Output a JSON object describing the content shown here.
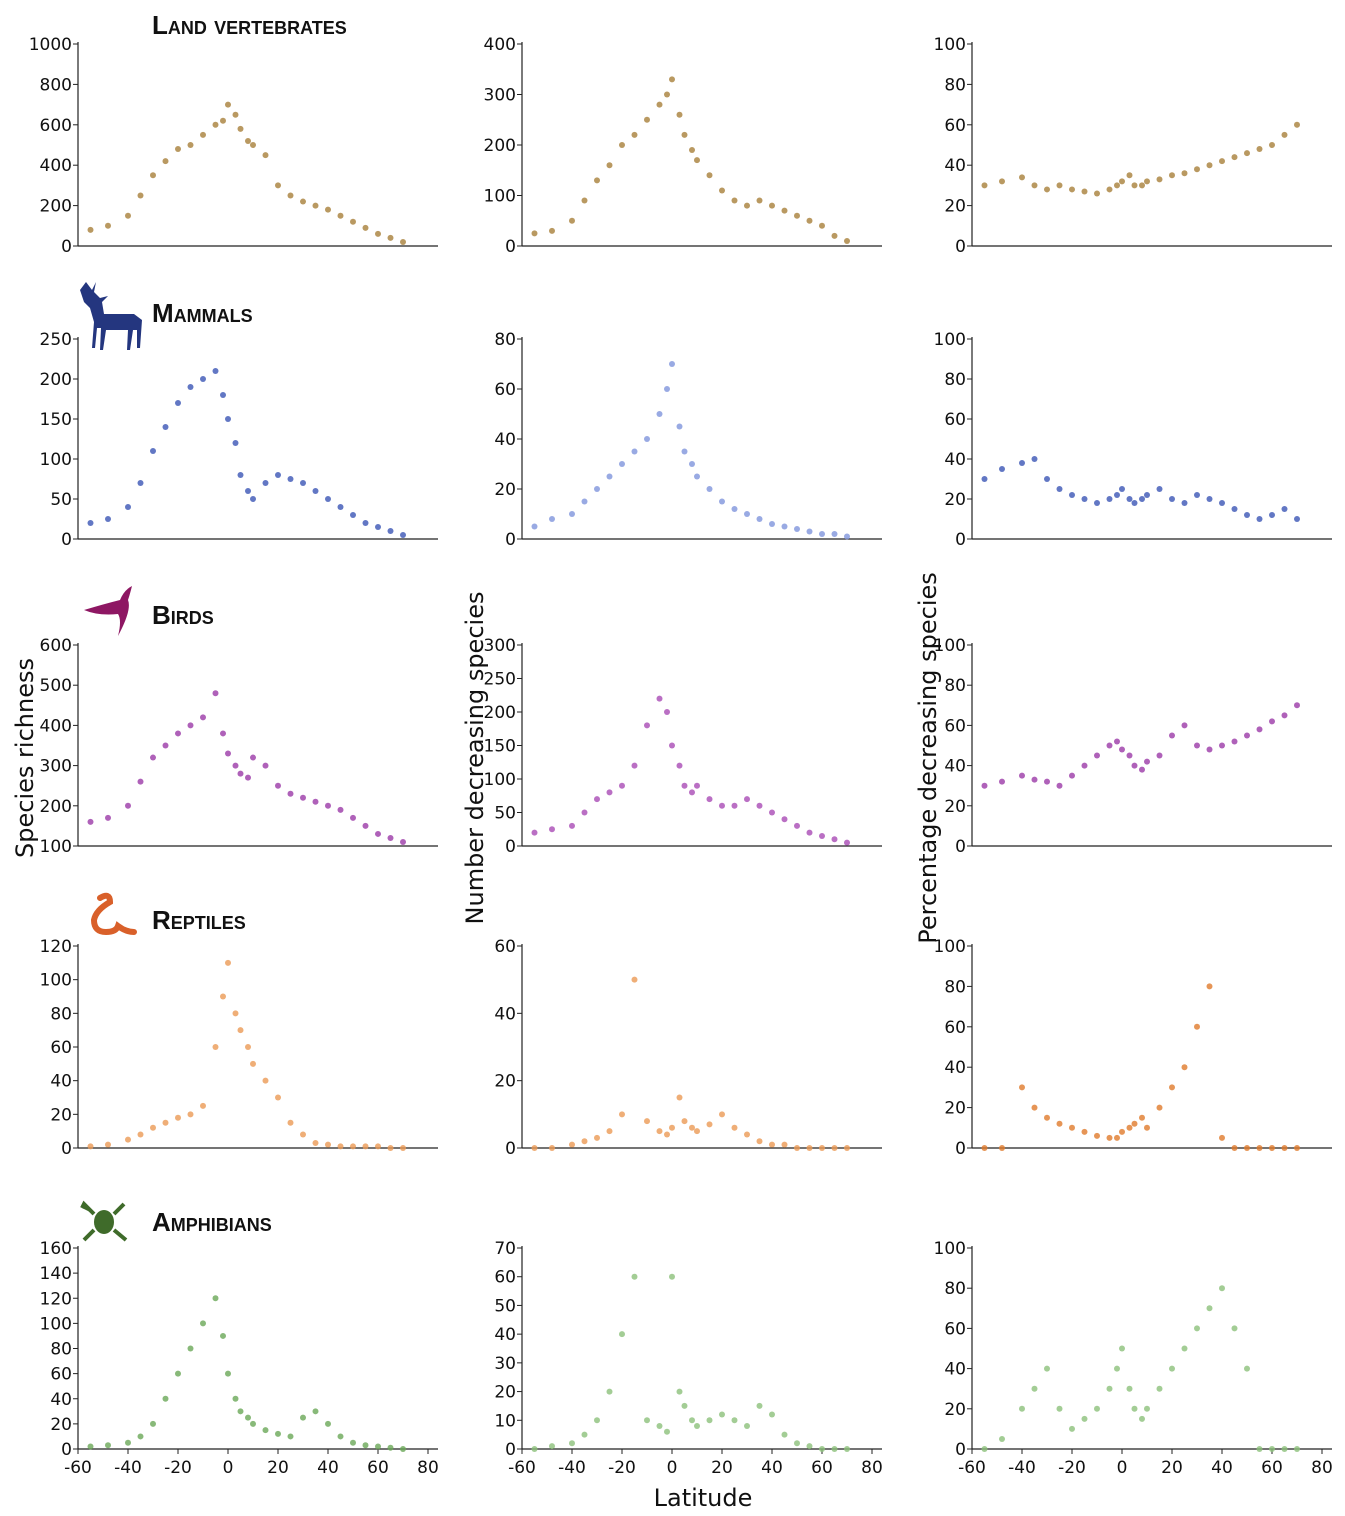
{
  "chart_data": [
    {
      "type": "scatter",
      "title": "Land vertebrates",
      "color": "#a8803a",
      "xlim": [
        -60,
        84
      ],
      "ylim": [
        0,
        1000
      ],
      "yticks": [
        0,
        200,
        400,
        600,
        800,
        1000
      ],
      "x": [
        -55,
        -48,
        -40,
        -35,
        -30,
        -25,
        -20,
        -15,
        -10,
        -5,
        -2,
        0,
        3,
        5,
        8,
        10,
        15,
        20,
        25,
        30,
        35,
        40,
        45,
        50,
        55,
        60,
        65,
        70
      ],
      "y": [
        80,
        100,
        150,
        250,
        350,
        420,
        480,
        500,
        550,
        600,
        620,
        700,
        650,
        580,
        520,
        500,
        450,
        300,
        250,
        220,
        200,
        180,
        150,
        120,
        90,
        60,
        40,
        20
      ]
    },
    {
      "type": "scatter",
      "color": "#a8803a",
      "xlim": [
        -60,
        84
      ],
      "ylim": [
        0,
        400
      ],
      "yticks": [
        0,
        100,
        200,
        300,
        400
      ],
      "x": [
        -55,
        -48,
        -40,
        -35,
        -30,
        -25,
        -20,
        -15,
        -10,
        -5,
        -2,
        0,
        3,
        5,
        8,
        10,
        15,
        20,
        25,
        30,
        35,
        40,
        45,
        50,
        55,
        60,
        65,
        70
      ],
      "y": [
        25,
        30,
        50,
        90,
        130,
        160,
        200,
        220,
        250,
        280,
        300,
        330,
        260,
        220,
        190,
        170,
        140,
        110,
        90,
        80,
        90,
        80,
        70,
        60,
        50,
        40,
        20,
        10
      ]
    },
    {
      "type": "scatter",
      "color": "#a8803a",
      "xlim": [
        -60,
        84
      ],
      "ylim": [
        0,
        100
      ],
      "yticks": [
        0,
        20,
        40,
        60,
        80,
        100
      ],
      "x": [
        -55,
        -48,
        -40,
        -35,
        -30,
        -25,
        -20,
        -15,
        -10,
        -5,
        -2,
        0,
        3,
        5,
        8,
        10,
        15,
        20,
        25,
        30,
        35,
        40,
        45,
        50,
        55,
        60,
        65,
        70
      ],
      "y": [
        30,
        32,
        34,
        30,
        28,
        30,
        28,
        27,
        26,
        28,
        30,
        32,
        35,
        30,
        30,
        32,
        33,
        35,
        36,
        38,
        40,
        42,
        44,
        46,
        48,
        50,
        55,
        60
      ]
    },
    {
      "type": "scatter",
      "title": "Mammals",
      "color": "#3b55b5",
      "xlim": [
        -60,
        84
      ],
      "ylim": [
        0,
        250
      ],
      "yticks": [
        0,
        50,
        100,
        150,
        200,
        250
      ],
      "x": [
        -55,
        -48,
        -40,
        -35,
        -30,
        -25,
        -20,
        -15,
        -10,
        -5,
        -2,
        0,
        3,
        5,
        8,
        10,
        15,
        20,
        25,
        30,
        35,
        40,
        45,
        50,
        55,
        60,
        65,
        70
      ],
      "y": [
        20,
        25,
        40,
        70,
        110,
        140,
        170,
        190,
        200,
        210,
        180,
        150,
        120,
        80,
        60,
        50,
        70,
        80,
        75,
        70,
        60,
        50,
        40,
        30,
        20,
        15,
        10,
        5
      ]
    },
    {
      "type": "scatter",
      "color": "#7f95dc",
      "xlim": [
        -60,
        84
      ],
      "ylim": [
        0,
        80
      ],
      "yticks": [
        0,
        20,
        40,
        60,
        80
      ],
      "x": [
        -55,
        -48,
        -40,
        -35,
        -30,
        -25,
        -20,
        -15,
        -10,
        -5,
        -2,
        0,
        3,
        5,
        8,
        10,
        15,
        20,
        25,
        30,
        35,
        40,
        45,
        50,
        55,
        60,
        65,
        70
      ],
      "y": [
        5,
        8,
        10,
        15,
        20,
        25,
        30,
        35,
        40,
        50,
        60,
        70,
        45,
        35,
        30,
        25,
        20,
        15,
        12,
        10,
        8,
        6,
        5,
        4,
        3,
        2,
        2,
        1
      ]
    },
    {
      "type": "scatter",
      "color": "#3b55b5",
      "xlim": [
        -60,
        84
      ],
      "ylim": [
        0,
        100
      ],
      "yticks": [
        0,
        20,
        40,
        60,
        80,
        100
      ],
      "x": [
        -55,
        -48,
        -40,
        -35,
        -30,
        -25,
        -20,
        -15,
        -10,
        -5,
        -2,
        0,
        3,
        5,
        8,
        10,
        15,
        20,
        25,
        30,
        35,
        40,
        45,
        50,
        55,
        60,
        65,
        70
      ],
      "y": [
        30,
        35,
        38,
        40,
        30,
        25,
        22,
        20,
        18,
        20,
        22,
        25,
        20,
        18,
        20,
        22,
        25,
        20,
        18,
        22,
        20,
        18,
        15,
        12,
        10,
        12,
        15,
        10
      ]
    },
    {
      "type": "scatter",
      "title": "Birds",
      "ylabel": "Species richness",
      "color": "#9b3aa8",
      "xlim": [
        -60,
        84
      ],
      "ylim": [
        100,
        600
      ],
      "yticks": [
        100,
        200,
        300,
        400,
        500,
        600
      ],
      "x": [
        -55,
        -48,
        -40,
        -35,
        -30,
        -25,
        -20,
        -15,
        -10,
        -5,
        -2,
        0,
        3,
        5,
        8,
        10,
        15,
        20,
        25,
        30,
        35,
        40,
        45,
        50,
        55,
        60,
        65,
        70
      ],
      "y": [
        160,
        170,
        200,
        260,
        320,
        350,
        380,
        400,
        420,
        480,
        380,
        330,
        300,
        280,
        270,
        320,
        300,
        250,
        230,
        220,
        210,
        200,
        190,
        170,
        150,
        130,
        120,
        110
      ]
    },
    {
      "type": "scatter",
      "ylabel": "Number decreasing species",
      "color": "#a94bb5",
      "xlim": [
        -60,
        84
      ],
      "ylim": [
        0,
        300
      ],
      "yticks": [
        0,
        50,
        100,
        150,
        200,
        250,
        300
      ],
      "x": [
        -55,
        -48,
        -40,
        -35,
        -30,
        -25,
        -20,
        -15,
        -10,
        -5,
        -2,
        0,
        3,
        5,
        8,
        10,
        15,
        20,
        25,
        30,
        35,
        40,
        45,
        50,
        55,
        60,
        65,
        70
      ],
      "y": [
        20,
        25,
        30,
        50,
        70,
        80,
        90,
        120,
        180,
        220,
        200,
        150,
        120,
        90,
        80,
        90,
        70,
        60,
        60,
        70,
        60,
        50,
        40,
        30,
        20,
        15,
        10,
        5
      ]
    },
    {
      "type": "scatter",
      "ylabel": "Percentage decreasing species",
      "color": "#9b3aa8",
      "xlim": [
        -60,
        84
      ],
      "ylim": [
        0,
        100
      ],
      "yticks": [
        0,
        20,
        40,
        60,
        80,
        100
      ],
      "x": [
        -55,
        -48,
        -40,
        -35,
        -30,
        -25,
        -20,
        -15,
        -10,
        -5,
        -2,
        0,
        3,
        5,
        8,
        10,
        15,
        20,
        25,
        30,
        35,
        40,
        45,
        50,
        55,
        60,
        65,
        70
      ],
      "y": [
        30,
        32,
        35,
        33,
        32,
        30,
        35,
        40,
        45,
        50,
        52,
        48,
        45,
        40,
        38,
        42,
        45,
        55,
        60,
        50,
        48,
        50,
        52,
        55,
        58,
        62,
        65,
        70
      ]
    },
    {
      "type": "scatter",
      "title": "Reptiles",
      "color": "#eb9a55",
      "xlim": [
        -60,
        84
      ],
      "ylim": [
        0,
        120
      ],
      "yticks": [
        0,
        20,
        40,
        60,
        80,
        100,
        120
      ],
      "x": [
        -55,
        -48,
        -40,
        -35,
        -30,
        -25,
        -20,
        -15,
        -10,
        -5,
        -2,
        0,
        3,
        5,
        8,
        10,
        15,
        20,
        25,
        30,
        35,
        40,
        45,
        50,
        55,
        60,
        65,
        70
      ],
      "y": [
        1,
        2,
        5,
        8,
        12,
        15,
        18,
        20,
        25,
        60,
        90,
        110,
        80,
        70,
        60,
        50,
        40,
        30,
        15,
        8,
        3,
        2,
        1,
        1,
        1,
        1,
        0,
        0
      ]
    },
    {
      "type": "scatter",
      "color": "#eb9a55",
      "xlim": [
        -60,
        84
      ],
      "ylim": [
        0,
        60
      ],
      "yticks": [
        0,
        20,
        40,
        60
      ],
      "x": [
        -55,
        -48,
        -40,
        -35,
        -30,
        -25,
        -20,
        -15,
        -10,
        -5,
        -2,
        0,
        3,
        5,
        8,
        10,
        15,
        20,
        25,
        30,
        35,
        40,
        45,
        50,
        55,
        60,
        65,
        70
      ],
      "y": [
        0,
        0,
        1,
        2,
        3,
        5,
        10,
        50,
        8,
        5,
        4,
        6,
        15,
        8,
        6,
        5,
        7,
        10,
        6,
        4,
        2,
        1,
        1,
        0,
        0,
        0,
        0,
        0
      ]
    },
    {
      "type": "scatter",
      "color": "#e07a2c",
      "xlim": [
        -60,
        84
      ],
      "ylim": [
        0,
        100
      ],
      "yticks": [
        0,
        20,
        40,
        60,
        80,
        100
      ],
      "x": [
        -55,
        -48,
        -40,
        -35,
        -30,
        -25,
        -20,
        -15,
        -10,
        -5,
        -2,
        0,
        3,
        5,
        8,
        10,
        15,
        20,
        25,
        30,
        35,
        40,
        45,
        50,
        55,
        60,
        65,
        70
      ],
      "y": [
        0,
        0,
        30,
        20,
        15,
        12,
        10,
        8,
        6,
        5,
        5,
        8,
        10,
        12,
        15,
        10,
        20,
        30,
        40,
        60,
        80,
        5,
        0,
        0,
        0,
        0,
        0,
        0
      ]
    },
    {
      "type": "scatter",
      "title": "Amphibians",
      "color": "#6aa857",
      "xlim": [
        -60,
        84
      ],
      "ylim": [
        0,
        160
      ],
      "yticks": [
        0,
        20,
        40,
        60,
        80,
        100,
        120,
        140,
        160
      ],
      "xticks": [
        -60,
        -40,
        -20,
        0,
        20,
        40,
        60,
        80
      ],
      "x": [
        -55,
        -48,
        -40,
        -35,
        -30,
        -25,
        -20,
        -15,
        -10,
        -5,
        -2,
        0,
        3,
        5,
        8,
        10,
        15,
        20,
        25,
        30,
        35,
        40,
        45,
        50,
        55,
        60,
        65,
        70
      ],
      "y": [
        2,
        3,
        5,
        10,
        20,
        40,
        60,
        80,
        100,
        120,
        90,
        60,
        40,
        30,
        25,
        20,
        15,
        12,
        10,
        25,
        30,
        20,
        10,
        5,
        3,
        2,
        1,
        0
      ]
    },
    {
      "type": "scatter",
      "xlabel": "Latitude",
      "color": "#8cc07a",
      "xlim": [
        -60,
        84
      ],
      "ylim": [
        0,
        70
      ],
      "yticks": [
        0,
        10,
        20,
        30,
        40,
        50,
        60,
        70
      ],
      "xticks": [
        -60,
        -40,
        -20,
        0,
        20,
        40,
        60,
        80
      ],
      "x": [
        -55,
        -48,
        -40,
        -35,
        -30,
        -25,
        -20,
        -15,
        -10,
        -5,
        -2,
        0,
        3,
        5,
        8,
        10,
        15,
        20,
        25,
        30,
        35,
        40,
        45,
        50,
        55,
        60,
        65,
        70
      ],
      "y": [
        0,
        1,
        2,
        5,
        10,
        20,
        40,
        60,
        10,
        8,
        6,
        60,
        20,
        15,
        10,
        8,
        10,
        12,
        10,
        8,
        15,
        12,
        5,
        2,
        1,
        0,
        0,
        0
      ]
    },
    {
      "type": "scatter",
      "color": "#8cc07a",
      "xlim": [
        -60,
        84
      ],
      "ylim": [
        0,
        100
      ],
      "yticks": [
        0,
        20,
        40,
        60,
        80,
        100
      ],
      "xticks": [
        -60,
        -40,
        -20,
        0,
        20,
        40,
        60,
        80
      ],
      "x": [
        -55,
        -48,
        -40,
        -35,
        -30,
        -25,
        -20,
        -15,
        -10,
        -5,
        -2,
        0,
        3,
        5,
        8,
        10,
        15,
        20,
        25,
        30,
        35,
        40,
        45,
        50,
        55,
        60,
        65,
        70
      ],
      "y": [
        0,
        5,
        20,
        30,
        40,
        20,
        10,
        15,
        20,
        30,
        40,
        50,
        30,
        20,
        15,
        20,
        30,
        40,
        50,
        60,
        70,
        80,
        60,
        40,
        0,
        0,
        0,
        0
      ]
    }
  ]
}
